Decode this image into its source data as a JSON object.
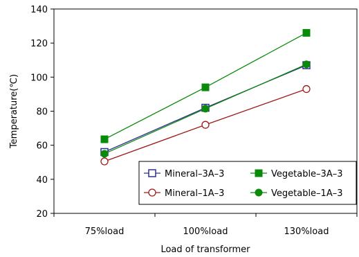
{
  "chart_data": {
    "type": "line",
    "title": "",
    "xlabel": "Load of transformer",
    "ylabel": "Temperature(℃)",
    "categories": [
      "75%load",
      "100%load",
      "130%load"
    ],
    "ylim": [
      20,
      140
    ],
    "yticks": [
      20,
      40,
      60,
      80,
      100,
      120,
      140
    ],
    "grid": false,
    "legend_position": "bottom-right",
    "series": [
      {
        "name": "Mineral–3A–3",
        "values": [
          56,
          82,
          107
        ],
        "color": "#2e2e8f",
        "marker": "square-open"
      },
      {
        "name": "Vegetable–3A–3",
        "values": [
          63.5,
          94,
          126
        ],
        "color": "#0a8a0a",
        "marker": "square-filled"
      },
      {
        "name": "Mineral–1A–3",
        "values": [
          50.5,
          72,
          93
        ],
        "color": "#a01818",
        "marker": "circle-open"
      },
      {
        "name": "Vegetable–1A–3",
        "values": [
          55,
          81.5,
          107.5
        ],
        "color": "#0a8a0a",
        "marker": "circle-filled"
      }
    ],
    "legend_order": [
      0,
      1,
      2,
      3
    ]
  }
}
